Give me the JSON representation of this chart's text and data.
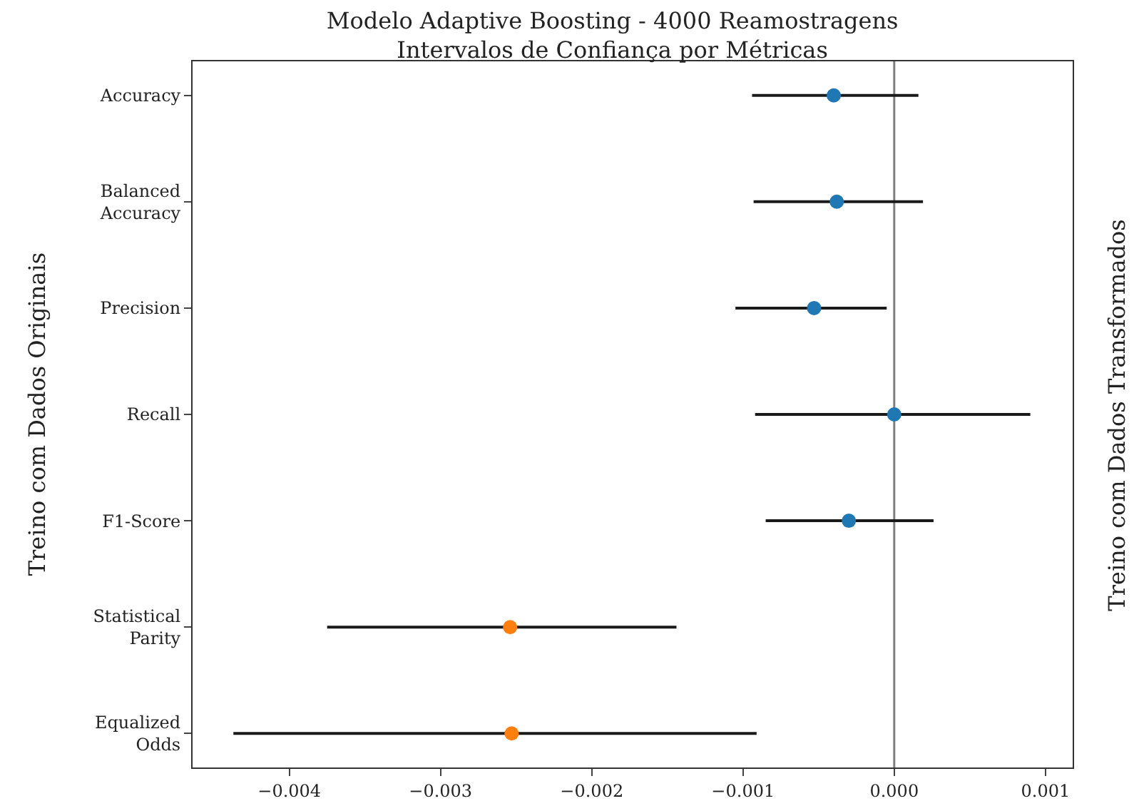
{
  "chart_data": {
    "type": "scatter",
    "orientation": "horizontal",
    "title": "Modelo Adaptive Boosting - 4000 Reamostragens",
    "subtitle": "Intervalos de Confiança por Métricas",
    "ylabel": "Treino com Dados Originais",
    "y2label": "Treino com Dados Transformados",
    "categories": [
      "Accuracy",
      "Balanced Accuracy",
      "Precision",
      "Recall",
      "F1-Score",
      "Statistical Parity",
      "Equalized Odds"
    ],
    "series": [
      {
        "color": "#1f77b4",
        "values": [
          -0.0004,
          -0.00038,
          -0.00053,
          0.0,
          -0.0003,
          null,
          null
        ],
        "errors": [
          [
            -0.00094,
            0.00016
          ],
          [
            -0.00093,
            0.00019
          ],
          [
            -0.00105,
            -5e-05
          ],
          [
            -0.00092,
            0.0009
          ],
          [
            -0.00085,
            0.00026
          ],
          null,
          null
        ]
      },
      {
        "color": "#ff7f0e",
        "values": [
          null,
          null,
          null,
          null,
          null,
          -0.00254,
          -0.00253
        ],
        "errors": [
          null,
          null,
          null,
          null,
          null,
          [
            -0.00375,
            -0.00144
          ],
          [
            -0.00437,
            -0.00091
          ]
        ]
      }
    ],
    "xlim": [
      -0.00464,
      0.00118
    ],
    "xticks": [
      {
        "value": -0.004,
        "label": "−0.004"
      },
      {
        "value": -0.003,
        "label": "−0.003"
      },
      {
        "value": -0.002,
        "label": "−0.002"
      },
      {
        "value": -0.001,
        "label": "−0.001"
      },
      {
        "value": 0,
        "label": "0.000"
      },
      {
        "value": 0.001,
        "label": "0.001"
      }
    ],
    "ref_lines": [
      {
        "axis": "x",
        "value": 0,
        "color": "#808080"
      }
    ],
    "marker": "circle",
    "grid": false
  }
}
